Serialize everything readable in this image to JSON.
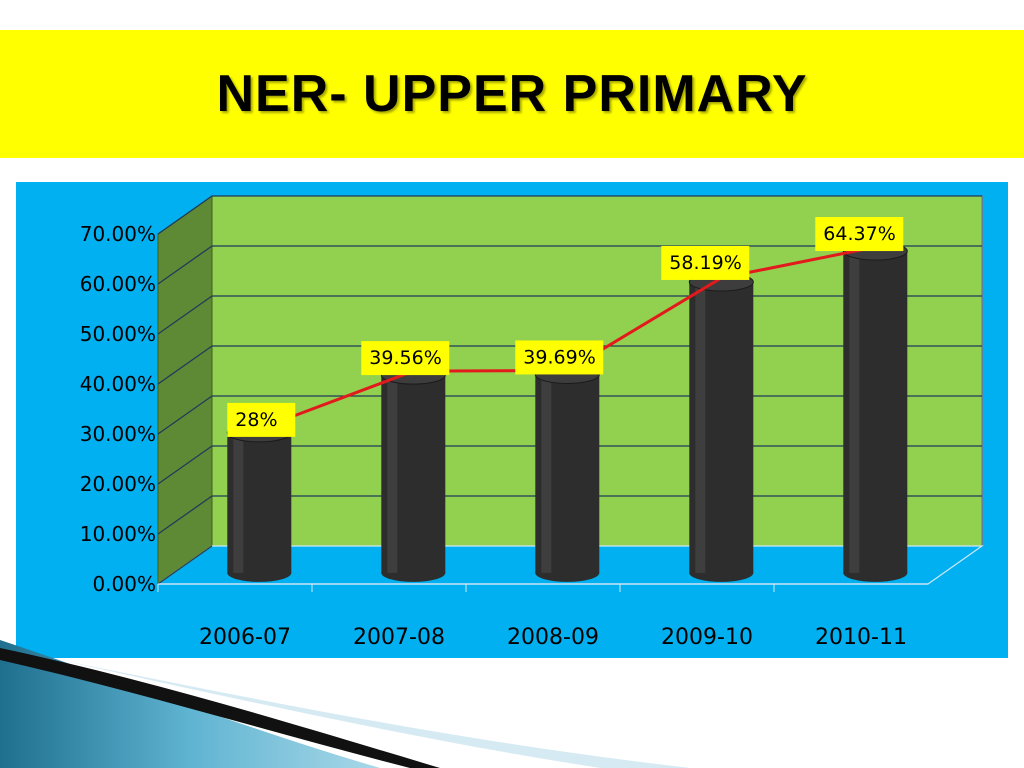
{
  "slide": {
    "title": "NER- UPPER PRIMARY"
  },
  "colors": {
    "title_band": "#ffff00",
    "panel_background": "#00b0f0",
    "plot_wall": "#92d050",
    "side_wall": "#5f8a35",
    "bar": "#2d2d2d",
    "line": "#e31a1c",
    "label_box": "#ffff00"
  },
  "chart_data": {
    "type": "bar",
    "categories": [
      "2006-07",
      "2007-08",
      "2008-09",
      "2009-10",
      "2010-11"
    ],
    "values": [
      28,
      39.56,
      39.69,
      58.19,
      64.37
    ],
    "value_unit": "%",
    "data_labels": [
      "28%",
      "39.56%",
      "39.69%",
      "58.19%",
      "64.37%"
    ],
    "overlay_line": true,
    "ylim": [
      0,
      70
    ],
    "yticks": [
      0,
      10,
      20,
      30,
      40,
      50,
      60,
      70
    ],
    "ytick_labels": [
      "0.00%",
      "10.00%",
      "20.00%",
      "30.00%",
      "40.00%",
      "50.00%",
      "60.00%",
      "70.00%"
    ],
    "grid": true,
    "style": "3d-cylinder",
    "title": "",
    "xlabel": "",
    "ylabel": ""
  }
}
